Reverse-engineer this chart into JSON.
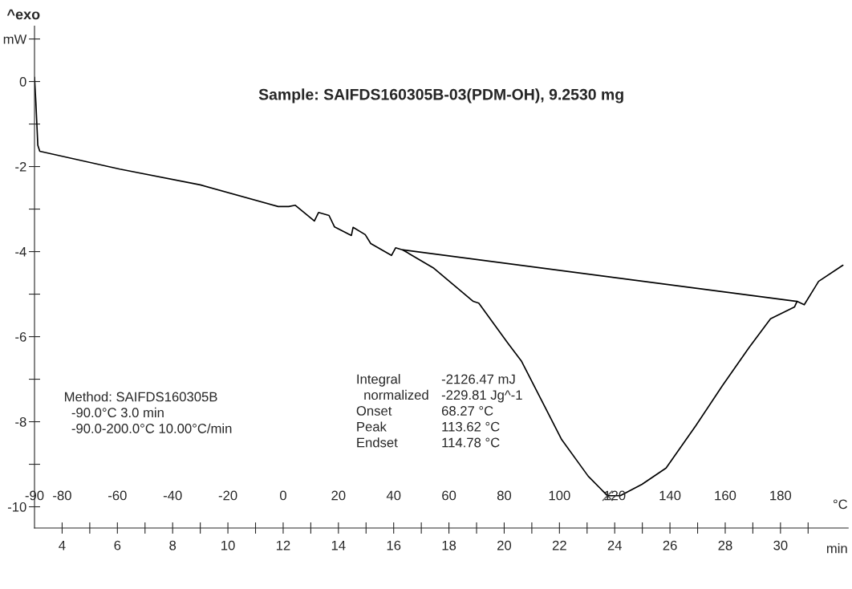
{
  "chart_data": {
    "type": "line",
    "title": "Sample: SAIFDS160305B-03(PDM-OH), 9.2530 mg",
    "xlabel": "min",
    "x2label": "°C",
    "xlim": [
      3,
      32.45
    ],
    "xticks": [
      {
        "value": 4,
        "label": "4"
      },
      {
        "value": 5,
        "label": null
      },
      {
        "value": 6,
        "label": "6"
      },
      {
        "value": 7,
        "label": null
      },
      {
        "value": 8,
        "label": "8"
      },
      {
        "value": 9,
        "label": null
      },
      {
        "value": 10,
        "label": "10"
      },
      {
        "value": 11,
        "label": null
      },
      {
        "value": 12,
        "label": "12"
      },
      {
        "value": 13,
        "label": null
      },
      {
        "value": 14,
        "label": "14"
      },
      {
        "value": 15,
        "label": null
      },
      {
        "value": 16,
        "label": "16"
      },
      {
        "value": 17,
        "label": null
      },
      {
        "value": 18,
        "label": "18"
      },
      {
        "value": 19,
        "label": null
      },
      {
        "value": 20,
        "label": "20"
      },
      {
        "value": 21,
        "label": null
      },
      {
        "value": 22,
        "label": "22"
      },
      {
        "value": 23,
        "label": null
      },
      {
        "value": 24,
        "label": "24"
      },
      {
        "value": 25,
        "label": null
      },
      {
        "value": 26,
        "label": "26"
      },
      {
        "value": 27,
        "label": null
      },
      {
        "value": 28,
        "label": "28"
      },
      {
        "value": 29,
        "label": null
      },
      {
        "value": 30,
        "label": "30"
      },
      {
        "value": 31,
        "label": null
      }
    ],
    "x2lim": [
      -90,
      204.5
    ],
    "x2ticks": [
      -90,
      -80,
      -60,
      -40,
      -20,
      0,
      20,
      40,
      60,
      80,
      100,
      120,
      140,
      160,
      180
    ],
    "ylim": [
      -10.5,
      1.3
    ],
    "yticks": [
      -10,
      {
        "value": -9,
        "label": null
      },
      -8,
      {
        "value": -7,
        "label": null
      },
      -6,
      {
        "value": -5,
        "label": null
      },
      -4,
      {
        "value": -3,
        "label": null
      },
      -2,
      {
        "value": -1,
        "label": null
      },
      0,
      {
        "value": 1,
        "label": "mW"
      }
    ],
    "grid": false,
    "series": [
      {
        "color": "#000000",
        "x": [
          3.0,
          3.05,
          3.12,
          3.19,
          6.09,
          9.0,
          11.82,
          12.2,
          12.44,
          13.13,
          13.28,
          13.66,
          13.86,
          14.47,
          14.53,
          14.97,
          15.17,
          15.92,
          16.07,
          16.33,
          17.43,
          18.88,
          19.08,
          20.13,
          20.63,
          22.08,
          23.04,
          23.74,
          24.2,
          24.99,
          25.86,
          26.94,
          27.9,
          28.86,
          29.64,
          30.51,
          30.6,
          30.86,
          31.38,
          32.26
        ],
        "values": [
          0.1,
          -0.5,
          -1.5,
          -1.64,
          -2.06,
          -2.43,
          -2.94,
          -2.94,
          -2.91,
          -3.28,
          -3.08,
          -3.15,
          -3.42,
          -3.62,
          -3.43,
          -3.6,
          -3.81,
          -4.09,
          -3.91,
          -3.96,
          -4.38,
          -5.17,
          -5.21,
          -6.15,
          -6.58,
          -8.42,
          -9.28,
          -9.74,
          -9.74,
          -9.47,
          -9.09,
          -8.09,
          -7.15,
          -6.26,
          -5.58,
          -5.3,
          -5.17,
          -5.25,
          -4.7,
          -4.32
        ]
      },
      {
        "color": "#000000",
        "x": [
          16.33,
          30.6
        ],
        "values": [
          -3.96,
          -5.17
        ]
      },
      {
        "type": "scatter",
        "marker": "cross",
        "color": "#606060",
        "x": [
          23.74
        ],
        "values": [
          -9.74
        ]
      }
    ],
    "annotations": [
      "^exo",
      "Method: SAIFDS160305B\n  -90.0°C 3.0 min\n  -90.0-200.0°C 10.00°C/min",
      "Integral\n  normalized\nOnset\nPeak\nEndset",
      "-2126.47 mJ\n-229.81 Jg^-1\n68.27 °C\n113.62 °C\n114.78 °C"
    ]
  }
}
